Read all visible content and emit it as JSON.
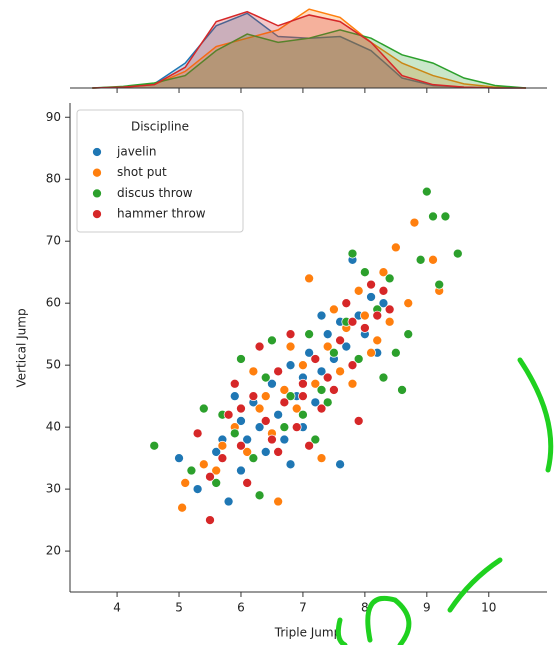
{
  "chart_data": {
    "type": "scatter",
    "x_label": "Triple Jump",
    "y_label": "Vertical Jump",
    "legend_title": "Discipline",
    "legend": "upper left",
    "xlim": [
      3.24,
      10.94
    ],
    "ylim": [
      13.4,
      92.3
    ],
    "xticks": [
      4,
      5,
      6,
      7,
      8,
      9,
      10
    ],
    "yticks": [
      20,
      30,
      40,
      50,
      60,
      70,
      80,
      90
    ],
    "series": [
      {
        "name": "javelin",
        "color": "#1f77b4",
        "x": [
          5.0,
          5.3,
          5.6,
          5.8,
          6.0,
          6.1,
          6.2,
          6.3,
          6.0,
          6.5,
          6.6,
          6.7,
          6.8,
          6.9,
          7.0,
          7.1,
          7.2,
          7.3,
          7.4,
          7.5,
          7.6,
          7.7,
          7.8,
          7.9,
          8.0,
          8.1,
          8.2,
          7.6,
          5.9,
          6.4,
          7.0,
          5.7,
          6.8,
          7.3,
          8.3
        ],
        "values": [
          35,
          30,
          36,
          28,
          41,
          38,
          44,
          40,
          33,
          47,
          42,
          38,
          50,
          45,
          48,
          52,
          44,
          49,
          55,
          51,
          57,
          53,
          67,
          58,
          55,
          61,
          52,
          34,
          45,
          36,
          40,
          38,
          34,
          58,
          60
        ]
      },
      {
        "name": "shot put",
        "color": "#ff7f0e",
        "x": [
          5.05,
          5.1,
          5.4,
          5.7,
          5.9,
          6.1,
          6.3,
          6.5,
          6.6,
          6.7,
          6.9,
          7.0,
          7.1,
          7.2,
          7.4,
          7.5,
          7.6,
          7.7,
          7.9,
          8.0,
          8.2,
          8.3,
          8.5,
          8.7,
          8.8,
          9.1,
          9.2,
          6.2,
          7.3,
          5.6,
          6.4,
          7.8,
          8.4,
          6.8,
          8.1
        ],
        "values": [
          27,
          31,
          34,
          37,
          40,
          36,
          43,
          39,
          28,
          46,
          43,
          50,
          64,
          47,
          53,
          59,
          49,
          56,
          62,
          58,
          54,
          65,
          69,
          60,
          73,
          67,
          62,
          49,
          35,
          33,
          45,
          47,
          57,
          53,
          52
        ]
      },
      {
        "name": "discus throw",
        "color": "#2ca02c",
        "x": [
          4.6,
          5.2,
          5.4,
          5.6,
          6.0,
          5.9,
          6.2,
          6.4,
          6.3,
          6.7,
          6.8,
          7.0,
          7.1,
          7.3,
          7.5,
          7.4,
          7.7,
          7.9,
          8.0,
          8.2,
          8.3,
          8.4,
          8.6,
          8.7,
          8.9,
          9.0,
          9.1,
          9.2,
          9.3,
          9.5,
          7.8,
          6.5,
          5.7,
          8.5,
          7.2
        ],
        "values": [
          37,
          33,
          43,
          31,
          51,
          39,
          35,
          48,
          29,
          40,
          45,
          42,
          55,
          46,
          52,
          44,
          57,
          51,
          65,
          59,
          48,
          64,
          46,
          55,
          67,
          78,
          74,
          63,
          74,
          68,
          68,
          54,
          42,
          52,
          38
        ]
      },
      {
        "name": "hammer throw",
        "color": "#d62728",
        "x": [
          5.5,
          5.3,
          5.5,
          5.7,
          5.8,
          6.0,
          6.1,
          6.2,
          6.4,
          6.5,
          6.6,
          6.7,
          6.9,
          7.0,
          7.2,
          7.3,
          7.4,
          7.6,
          7.7,
          7.8,
          8.0,
          8.1,
          8.2,
          8.4,
          7.9,
          6.3,
          7.1,
          5.9,
          6.8,
          8.3,
          7.5,
          6.0,
          7.0,
          6.6,
          7.8
        ],
        "values": [
          25,
          39,
          32,
          35,
          42,
          37,
          31,
          45,
          41,
          38,
          49,
          44,
          40,
          47,
          51,
          43,
          48,
          54,
          60,
          50,
          56,
          63,
          58,
          59,
          41,
          53,
          37,
          47,
          55,
          62,
          46,
          43,
          45,
          36,
          57
        ]
      }
    ],
    "marginal": {
      "ylim": [
        0,
        1
      ],
      "x": [
        3.6,
        4.1,
        4.6,
        5.1,
        5.6,
        6.1,
        6.6,
        7.1,
        7.6,
        8.1,
        8.6,
        9.1,
        9.6,
        10.1,
        10.6
      ],
      "densities": [
        [
          0,
          0.01,
          0.05,
          0.3,
          0.75,
          0.9,
          0.62,
          0.6,
          0.62,
          0.45,
          0.12,
          0.03,
          0.01,
          0,
          0
        ],
        [
          0,
          0.01,
          0.04,
          0.2,
          0.5,
          0.6,
          0.7,
          0.95,
          0.85,
          0.55,
          0.3,
          0.15,
          0.05,
          0.01,
          0
        ],
        [
          0,
          0.02,
          0.06,
          0.15,
          0.45,
          0.65,
          0.55,
          0.6,
          0.7,
          0.6,
          0.4,
          0.3,
          0.12,
          0.03,
          0
        ],
        [
          0,
          0.01,
          0.04,
          0.25,
          0.8,
          0.92,
          0.75,
          0.88,
          0.8,
          0.55,
          0.15,
          0.04,
          0.01,
          0,
          0
        ]
      ]
    }
  }
}
